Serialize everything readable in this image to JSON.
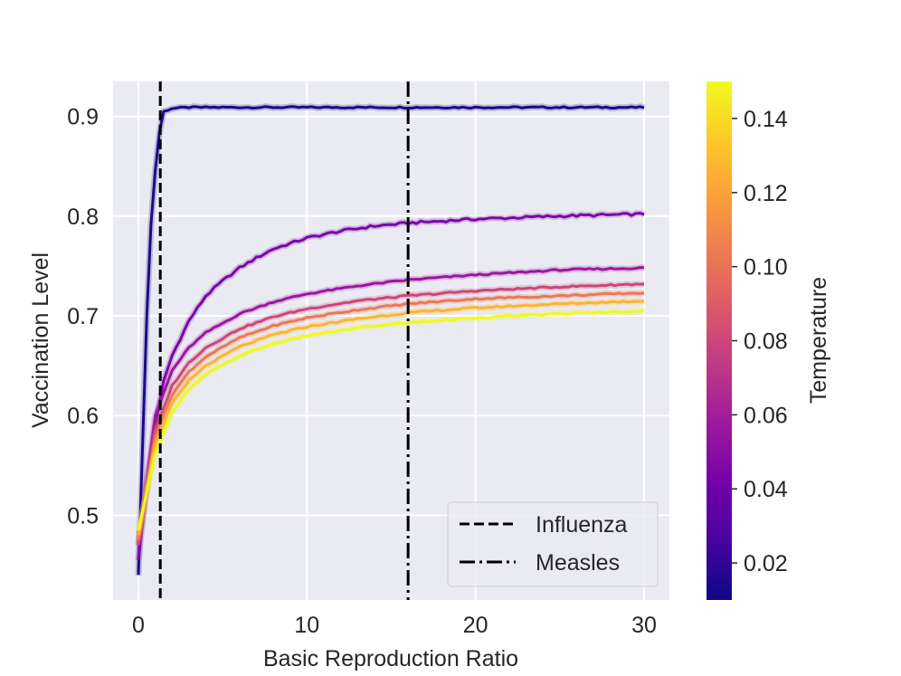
{
  "chart_data": {
    "type": "line",
    "title": "",
    "xlabel": "Basic Reproduction Ratio",
    "ylabel": "Vaccination Level",
    "xlim": [
      -1.5,
      31.5
    ],
    "ylim": [
      0.415,
      0.935
    ],
    "xticks": [
      0,
      10,
      20,
      30
    ],
    "xtick_labels": [
      "0",
      "10",
      "20",
      "30"
    ],
    "yticks": [
      0.5,
      0.6,
      0.7,
      0.8,
      0.9
    ],
    "ytick_labels": [
      "0.5",
      "0.6",
      "0.7",
      "0.8",
      "0.9"
    ],
    "grid": true,
    "vlines": [
      {
        "name": "Influenza",
        "x": 1.3,
        "style": "dashed"
      },
      {
        "name": "Measles",
        "x": 16.0,
        "style": "dashdot"
      }
    ],
    "legend": {
      "placement": "lower-right",
      "entries": [
        "Influenza",
        "Measles"
      ]
    },
    "colorbar": {
      "label": "Temperature",
      "range": [
        0.01,
        0.15
      ],
      "ticks": [
        0.02,
        0.04,
        0.06,
        0.08,
        0.1,
        0.12,
        0.14
      ],
      "tick_labels": [
        "0.02",
        "0.04",
        "0.06",
        "0.08",
        "0.10",
        "0.12",
        "0.14"
      ]
    },
    "series": [
      {
        "name": "T=0.01",
        "temperature": 0.01,
        "color": "#1c0a88",
        "points": [
          [
            0,
            0.44
          ],
          [
            0.5,
            0.7
          ],
          [
            0.8,
            0.81
          ],
          [
            1.2,
            0.88
          ],
          [
            1.5,
            0.905
          ],
          [
            2,
            0.908
          ],
          [
            3,
            0.909
          ],
          [
            30,
            0.909
          ]
        ]
      },
      {
        "name": "T=0.04",
        "temperature": 0.04,
        "color": "#7a08a7",
        "points": [
          [
            0,
            0.455
          ],
          [
            0.5,
            0.53
          ],
          [
            1,
            0.59
          ],
          [
            1.5,
            0.635
          ],
          [
            2,
            0.66
          ],
          [
            3,
            0.695
          ],
          [
            4,
            0.72
          ],
          [
            5,
            0.735
          ],
          [
            6,
            0.748
          ],
          [
            7,
            0.758
          ],
          [
            8,
            0.767
          ],
          [
            10,
            0.778
          ],
          [
            12,
            0.785
          ],
          [
            14,
            0.79
          ],
          [
            16,
            0.793
          ],
          [
            18,
            0.795
          ],
          [
            20,
            0.797
          ],
          [
            25,
            0.8
          ],
          [
            30,
            0.802
          ]
        ]
      },
      {
        "name": "T=0.06",
        "temperature": 0.06,
        "color": "#9b179e",
        "points": [
          [
            0,
            0.47
          ],
          [
            1,
            0.6
          ],
          [
            2,
            0.645
          ],
          [
            3,
            0.668
          ],
          [
            4,
            0.683
          ],
          [
            6,
            0.702
          ],
          [
            8,
            0.714
          ],
          [
            10,
            0.722
          ],
          [
            13,
            0.73
          ],
          [
            16,
            0.736
          ],
          [
            20,
            0.741
          ],
          [
            25,
            0.746
          ],
          [
            30,
            0.748
          ]
        ]
      },
      {
        "name": "T=0.08",
        "temperature": 0.08,
        "color": "#cb4778",
        "points": [
          [
            0,
            0.47
          ],
          [
            1,
            0.585
          ],
          [
            2,
            0.63
          ],
          [
            3,
            0.653
          ],
          [
            4,
            0.668
          ],
          [
            6,
            0.687
          ],
          [
            8,
            0.699
          ],
          [
            10,
            0.707
          ],
          [
            13,
            0.715
          ],
          [
            16,
            0.72
          ],
          [
            20,
            0.725
          ],
          [
            25,
            0.729
          ],
          [
            30,
            0.732
          ]
        ]
      },
      {
        "name": "T=0.10",
        "temperature": 0.1,
        "color": "#ec7853",
        "points": [
          [
            0,
            0.475
          ],
          [
            1,
            0.578
          ],
          [
            2,
            0.621
          ],
          [
            3,
            0.644
          ],
          [
            4,
            0.659
          ],
          [
            6,
            0.678
          ],
          [
            8,
            0.69
          ],
          [
            10,
            0.698
          ],
          [
            13,
            0.706
          ],
          [
            16,
            0.712
          ],
          [
            20,
            0.717
          ],
          [
            25,
            0.72
          ],
          [
            30,
            0.723
          ]
        ]
      },
      {
        "name": "T=0.12",
        "temperature": 0.12,
        "color": "#fdb42f",
        "points": [
          [
            0,
            0.48
          ],
          [
            1,
            0.57
          ],
          [
            2,
            0.612
          ],
          [
            3,
            0.635
          ],
          [
            4,
            0.65
          ],
          [
            6,
            0.669
          ],
          [
            8,
            0.681
          ],
          [
            10,
            0.689
          ],
          [
            13,
            0.697
          ],
          [
            16,
            0.703
          ],
          [
            20,
            0.708
          ],
          [
            25,
            0.712
          ],
          [
            30,
            0.715
          ]
        ]
      },
      {
        "name": "T=0.14",
        "temperature": 0.14,
        "color": "#f0f921",
        "points": [
          [
            0,
            0.485
          ],
          [
            1,
            0.562
          ],
          [
            2,
            0.603
          ],
          [
            3,
            0.626
          ],
          [
            4,
            0.641
          ],
          [
            6,
            0.66
          ],
          [
            8,
            0.672
          ],
          [
            10,
            0.68
          ],
          [
            13,
            0.688
          ],
          [
            16,
            0.693
          ],
          [
            20,
            0.698
          ],
          [
            25,
            0.702
          ],
          [
            30,
            0.705
          ]
        ]
      }
    ]
  },
  "colors": {
    "plot_background": "#eaeaf2",
    "grid": "#ffffff",
    "vline": "#000000",
    "text": "#262626",
    "colormap": [
      "#0d0887",
      "#46039f",
      "#7201a8",
      "#9c179e",
      "#bd3786",
      "#d8576b",
      "#ed7953",
      "#fb9f3a",
      "#fdca26",
      "#f0f921"
    ]
  }
}
